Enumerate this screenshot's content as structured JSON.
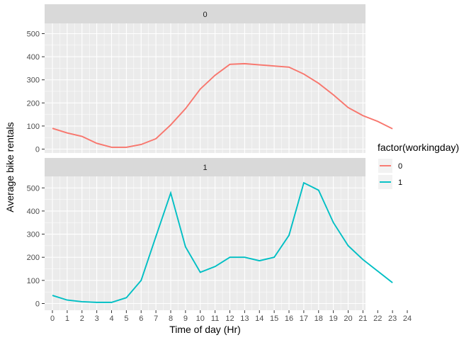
{
  "chart_data": {
    "type": "line",
    "xlabel": "Time of day (Hr)",
    "ylabel": "Average bike rentals",
    "xlim": [
      0,
      24
    ],
    "ylim": [
      0,
      500
    ],
    "x_ticks": [
      0,
      1,
      2,
      3,
      4,
      5,
      6,
      7,
      8,
      9,
      10,
      11,
      12,
      13,
      14,
      15,
      16,
      17,
      18,
      19,
      20,
      21,
      22,
      23,
      24
    ],
    "y_ticks": [
      0,
      100,
      200,
      300,
      400,
      500
    ],
    "grid": true,
    "legend": {
      "title": "factor(workingday)",
      "placement": "right",
      "entries": [
        {
          "label": "0",
          "color": "#F8766D"
        },
        {
          "label": "1",
          "color": "#00BFC4"
        }
      ]
    },
    "x": [
      0,
      1,
      2,
      3,
      4,
      5,
      6,
      7,
      8,
      9,
      10,
      11,
      12,
      13,
      14,
      15,
      16,
      17,
      18,
      19,
      20,
      21,
      22,
      23
    ],
    "panels": [
      {
        "strip": "0",
        "color": "#F8766D",
        "values": [
          90,
          70,
          55,
          25,
          8,
          8,
          20,
          45,
          105,
          175,
          260,
          320,
          367,
          370,
          365,
          360,
          355,
          325,
          285,
          235,
          180,
          145,
          120,
          88
        ]
      },
      {
        "strip": "1",
        "color": "#00BFC4",
        "values": [
          35,
          15,
          8,
          5,
          5,
          25,
          100,
          290,
          478,
          245,
          135,
          160,
          200,
          200,
          185,
          200,
          295,
          522,
          490,
          350,
          250,
          190,
          140,
          90
        ]
      }
    ]
  }
}
